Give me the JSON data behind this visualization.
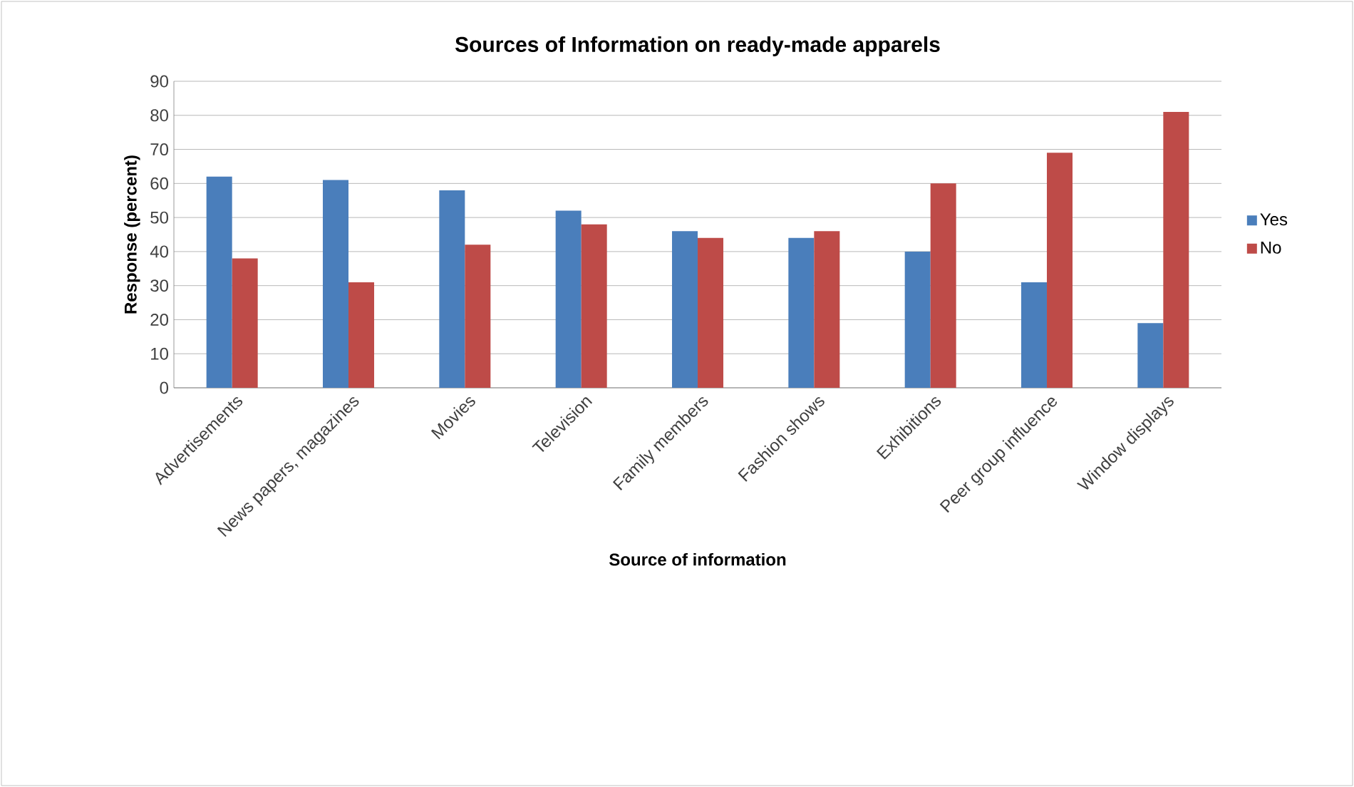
{
  "chart_data": {
    "type": "bar",
    "title": "Sources of Information on ready-made apparels",
    "xlabel": "Source of information",
    "ylabel": "Response (percent)",
    "categories": [
      "Advertisements",
      "News papers, magazines",
      "Movies",
      "Television",
      "Family members",
      "Fashion shows",
      "Exhibitions",
      "Peer group influence",
      "Window displays"
    ],
    "series": [
      {
        "name": "Yes",
        "color": "#4a7ebb",
        "values": [
          62,
          61,
          58,
          52,
          46,
          44,
          40,
          31,
          19
        ]
      },
      {
        "name": "No",
        "color": "#be4b48",
        "values": [
          38,
          31,
          42,
          48,
          44,
          46,
          60,
          69,
          81
        ]
      }
    ],
    "ylim": [
      0,
      90
    ],
    "yticks": [
      0,
      10,
      20,
      30,
      40,
      50,
      60,
      70,
      80,
      90
    ],
    "grid": "y",
    "legend": "right"
  }
}
